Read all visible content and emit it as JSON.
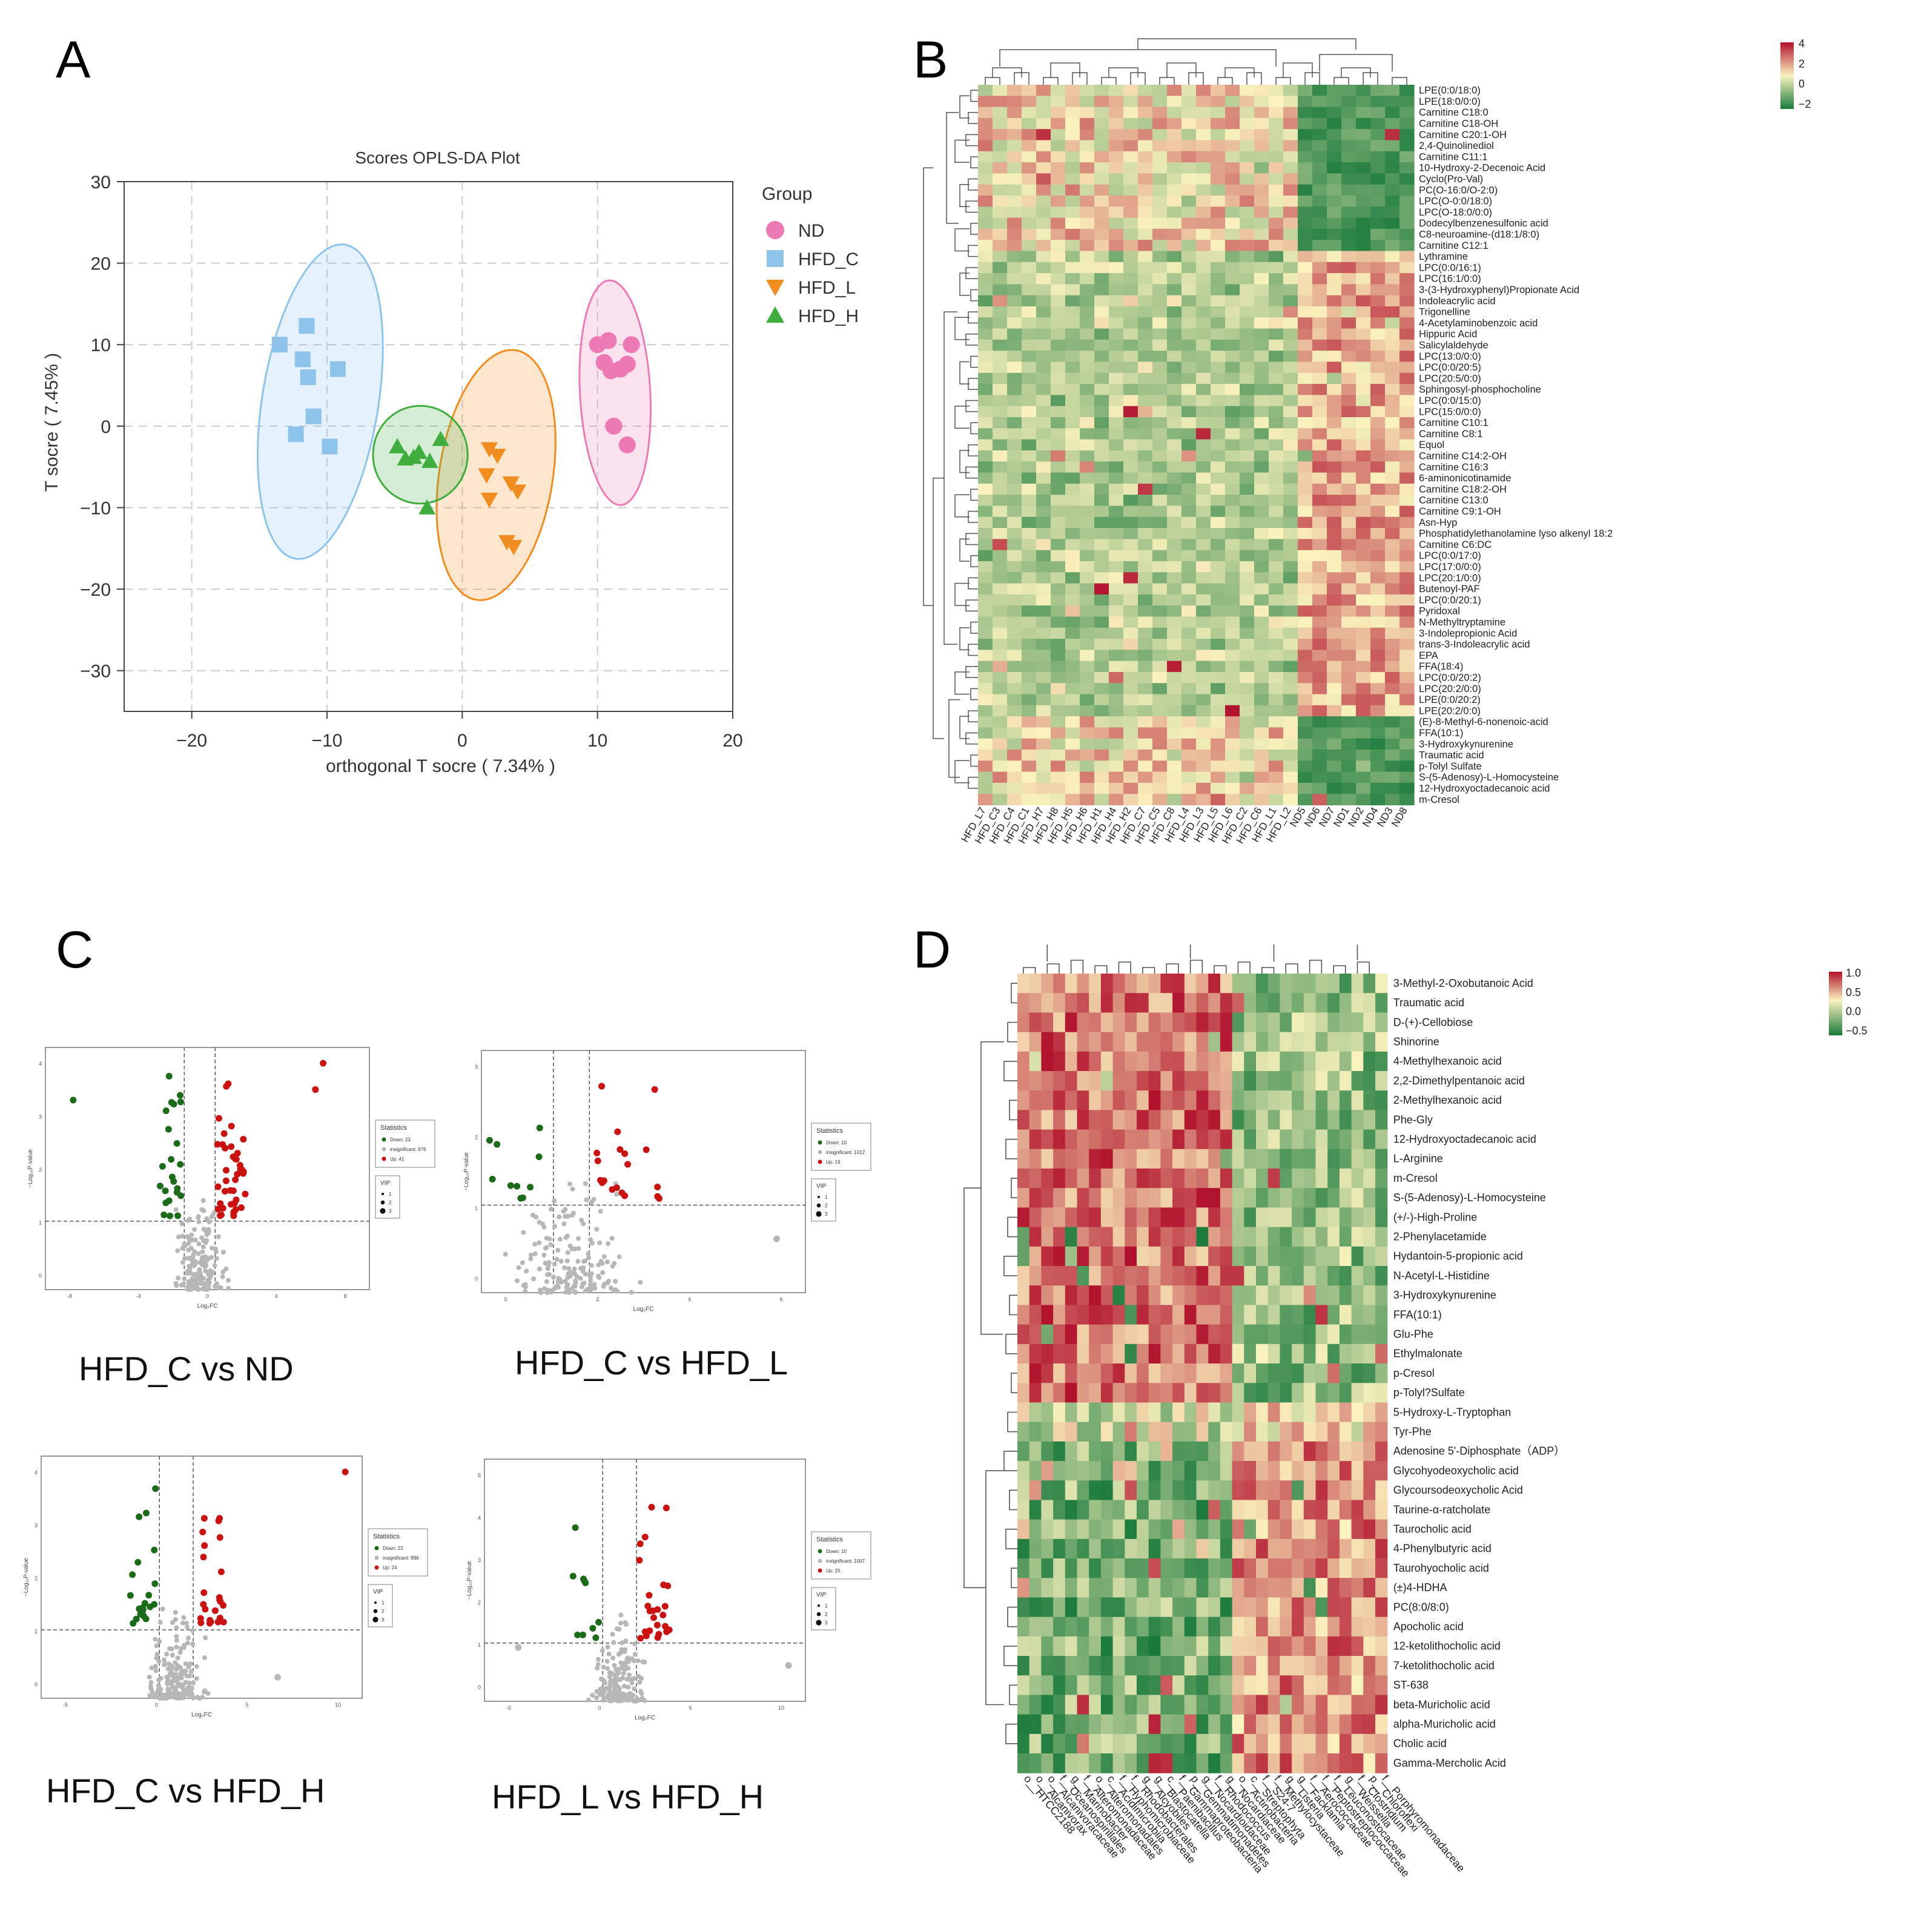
{
  "panels": {
    "a": "A",
    "b": "B",
    "c": "C",
    "d": "D"
  },
  "colors": {
    "ND": "#ee7ab5",
    "HFD_C": "#8ec3ec",
    "HFD_L": "#f08d1e",
    "HFD_H": "#3fae3f",
    "heat_low": "#1a7a3c",
    "heat_mid": "#fbf2bd",
    "heat_high": "#b1112c",
    "vol_down": "#1b6b1b",
    "vol_up": "#cc1111",
    "vol_ns": "#b7b7b7"
  },
  "chart_data": [
    {
      "type": "scatter",
      "title": "Scores OPLS-DA Plot",
      "xlabel": "orthogonal T socre ( 7.34% )",
      "ylabel": "T socre ( 7.45% )",
      "xlim": [
        -25,
        20
      ],
      "ylim": [
        -35,
        30
      ],
      "xticks": [
        -20,
        -10,
        0,
        10,
        20
      ],
      "yticks": [
        -30,
        -20,
        -10,
        0,
        10,
        20,
        30
      ],
      "xtick_labels": [
        "−20",
        "−10",
        "0",
        "10",
        "20"
      ],
      "ytick_labels": [
        "−30",
        "−20",
        "−10",
        "0",
        "10",
        "20",
        "30"
      ],
      "legend_title": "Group",
      "series": [
        {
          "name": "ND",
          "marker": "circle",
          "points": [
            [
              10,
              10
            ],
            [
              10.8,
              10.5
            ],
            [
              12.5,
              10
            ],
            [
              10.5,
              7.8
            ],
            [
              11.7,
              7
            ],
            [
              12.2,
              7.6
            ],
            [
              11,
              6.8
            ],
            [
              11.2,
              0
            ],
            [
              12.2,
              -2.3
            ]
          ],
          "ellipse": {
            "cx": 11.3,
            "cy": 4.1,
            "rx": 2.6,
            "ry": 13.8,
            "angle": -3
          }
        },
        {
          "name": "HFD_C",
          "marker": "square",
          "points": [
            [
              -13.5,
              10
            ],
            [
              -11.5,
              12.3
            ],
            [
              -11.8,
              8.2
            ],
            [
              -11.4,
              6
            ],
            [
              -9.2,
              7
            ],
            [
              -11,
              1.2
            ],
            [
              -12.3,
              -1
            ],
            [
              -9.8,
              -2.5
            ]
          ],
          "ellipse": {
            "cx": -10.5,
            "cy": 3,
            "rx": 4.3,
            "ry": 19.5,
            "angle": 9
          }
        },
        {
          "name": "HFD_L",
          "marker": "triangle-down",
          "points": [
            [
              2,
              -2.8
            ],
            [
              2.6,
              -3.6
            ],
            [
              1.8,
              -6
            ],
            [
              3.6,
              -7
            ],
            [
              2,
              -9
            ],
            [
              4.1,
              -8
            ],
            [
              3.3,
              -14.2
            ],
            [
              3.8,
              -14.8
            ]
          ],
          "ellipse": {
            "cx": 2.5,
            "cy": -6,
            "rx": 4.2,
            "ry": 15.5,
            "angle": 9
          }
        },
        {
          "name": "HFD_H",
          "marker": "triangle",
          "points": [
            [
              -4.8,
              -2.5
            ],
            [
              -3.6,
              -3.8
            ],
            [
              -4.2,
              -4
            ],
            [
              -3.2,
              -3.2
            ],
            [
              -2.4,
              -4.3
            ],
            [
              -1.6,
              -1.6
            ],
            [
              -2.6,
              -10
            ]
          ],
          "ellipse": {
            "cx": -3.1,
            "cy": -3.5,
            "rx": 3.5,
            "ry": 6,
            "angle": 0
          }
        }
      ]
    },
    {
      "type": "heatmap",
      "colorbar_ticks": [
        "4",
        "2",
        "0",
        "−2"
      ],
      "columns": [
        "HFD_L7",
        "HFD_C3",
        "HFD_C4",
        "HFD_C1",
        "HFD_H7",
        "HFD_H8",
        "HFD_H5",
        "HFD_H6",
        "HFD_H1",
        "HFD_H4",
        "HFD_H2",
        "HFD_C7",
        "HFD_C5",
        "HFD_C8",
        "HFD_L4",
        "HFD_L3",
        "HFD_L5",
        "HFD_L6",
        "HFD_C2",
        "HFD_C6",
        "HFD_L1",
        "HFD_L2",
        "ND5",
        "ND6",
        "ND7",
        "ND1",
        "ND2",
        "ND4",
        "ND3",
        "ND8"
      ],
      "rows": [
        "LPE(0:0/18:0)",
        "LPE(18:0/0:0)",
        "Carnitine C18:0",
        "Carnitine C18-OH",
        "Carnitine C20:1-OH",
        "2,4-Quinolinediol",
        "Carnitine C11:1",
        "10-Hydroxy-2-Decenoic Acid",
        "Cyclo(Pro-Val)",
        "PC(O-16:0/O-2:0)",
        "LPC(O-0:0/18:0)",
        "LPC(O-18:0/0:0)",
        "Dodecylbenzenesulfonic acid",
        "C8-neuroamine-(d18:1/8:0)",
        "Carnitine C12:1",
        "Lythramine",
        "LPC(0:0/16:1)",
        "LPC(16:1/0:0)",
        "3-(3-Hydroxyphenyl)Propionate Acid",
        "Indoleacrylic acid",
        "Trigonelline",
        "4-Acetylaminobenzoic acid",
        "Hippuric Acid",
        "Salicylaldehyde",
        "LPC(13:0/0:0)",
        "LPC(0:0/20:5)",
        "LPC(20:5/0:0)",
        "Sphingosyl-phosphocholine",
        "LPC(0:0/15:0)",
        "LPC(15:0/0:0)",
        "Carnitine C10:1",
        "Carnitine C8:1",
        "Equol",
        "Carnitine C14:2-OH",
        "Carnitine C16:3",
        "6-aminonicotinamide",
        "Carnitine C18:2-OH",
        "Carnitine C13:0",
        "Carnitine C9:1-OH",
        "Asn-Hyp",
        "Phosphatidylethanolamine lyso alkenyl 18:2",
        "Carnitine C6:DC",
        "LPC(0:0/17:0)",
        "LPC(17:0/0:0)",
        "LPC(20:1/0:0)",
        "Butenoyl-PAF",
        "LPC(0:0/20:1)",
        "Pyridoxal",
        "N-Methyltryptamine",
        "3-Indolepropionic Acid",
        "trans-3-Indoleacrylic acid",
        "EPA",
        "FFA(18:4)",
        "LPC(0:0/20:2)",
        "LPC(20:2/0:0)",
        "LPE(0:0/20:2)",
        "LPE(20:2/0:0)",
        "(E)-8-Methyl-6-nonenoic-acid",
        "FFA(10:1)",
        "3-Hydroxykynurenine",
        "Traumatic acid",
        "p-Tolyl Sulfate",
        "S-(5-Adenosy)-L-Homocysteine",
        "12-Hydroxyoctadecanoic acid",
        "m-Cresol"
      ]
    },
    {
      "type": "scatter",
      "subtype": "volcano",
      "xlabel": "Log₂FC",
      "ylabel": "−Log₁₀P-value",
      "legend_title": "Statistics",
      "vip_title": "VIP",
      "vip_levels": [
        "1",
        "2",
        "3"
      ],
      "plots": [
        {
          "title": "HFD_C vs ND",
          "legend": [
            "Down: 23",
            "insignificant: 976",
            "Up: 41"
          ],
          "xticks": [
            "-8",
            "-4",
            "0",
            "4",
            "8"
          ],
          "yticks": [
            "0",
            "1",
            "2",
            "3",
            "4"
          ]
        },
        {
          "title": "HFD_C vs HFD_L",
          "legend": [
            "Down: 10",
            "insignificant: 1012",
            "Up: 19"
          ],
          "xticks": [
            "0",
            "2",
            "4",
            "6"
          ],
          "yticks": [
            "0",
            "1",
            "2",
            "3"
          ]
        },
        {
          "title": "HFD_C vs HFD_H",
          "legend": [
            "Down: 22",
            "insignificant: 996",
            "Up: 24"
          ],
          "xticks": [
            "-5",
            "0",
            "5",
            "10"
          ],
          "yticks": [
            "0",
            "1",
            "2",
            "3",
            "4"
          ]
        },
        {
          "title": "HFD_L vs HFD_H",
          "legend": [
            "Down: 10",
            "insignificant: 1007",
            "Up: 25"
          ],
          "xticks": [
            "-5",
            "0",
            "5",
            "10"
          ],
          "yticks": [
            "0",
            "1",
            "2",
            "3",
            "4",
            "5"
          ]
        }
      ]
    },
    {
      "type": "heatmap",
      "subtype": "correlation",
      "colorbar_ticks": [
        "1.0",
        "0.5",
        "0.0",
        "−0.5"
      ],
      "columns": [
        "o__HTCC2188",
        "o__Alcanivorax",
        "o__Alcanivoracaceae",
        "f__Oceanospirillales",
        "g__Marinobacter",
        "f__Alteromonadaceae",
        "o__Alteromonadales",
        "c__Acidimicrobiia",
        "f__Hyphomicrobiaceae",
        "f__Rhodobacterales",
        "g__Alcyobiles",
        "g__Blastocatella",
        "c__Paenibacillus",
        "f__Gammaproteobacteria",
        "p__Gemmatimonadetes",
        "g__Nocardioidaceae",
        "f__Rhodococcus",
        "g__Nocardiaceae",
        "o__Actinobacteria",
        "c__Streptophyta",
        "f__S24-7",
        "f__Methylocystaceae",
        "g__Listeria",
        "g__Facklamia",
        "f__Aerococcaceae",
        "f__Peptostreptococcaceae",
        "f__Leuconostocaceae",
        "g__Weissella",
        "f__Clostridium",
        "p__Chloroflexi",
        "f__Porphyromonadaceae"
      ],
      "rows": [
        "3-Methyl-2-Oxobutanoic Acid",
        "Traumatic acid",
        "D-(+)-Cellobiose",
        "Shinorine",
        "4-Methylhexanoic acid",
        "2,2-Dimethylpentanoic acid",
        "2-Methylhexanoic acid",
        "Phe-Gly",
        "12-Hydroxyoctadecanoic acid",
        "L-Arginine",
        "m-Cresol",
        "S-(5-Adenosy)-L-Homocysteine",
        "(+/-)-High-Proline",
        "2-Phenylacetamide",
        "Hydantoin-5-propionic acid",
        "N-Acetyl-L-Histidine",
        "3-Hydroxykynurenine",
        "FFA(10:1)",
        "Glu-Phe",
        "Ethylmalonate",
        "p-Cresol",
        "p-Tolyl?Sulfate",
        "5-Hydroxy-L-Tryptophan",
        "Tyr-Phe",
        "Adenosine 5'-Diphosphate（ADP）",
        "Glycohyodeoxycholic acid",
        "Glycoursodeoxycholic Acid",
        "Taurine-α-ratcholate",
        "Taurocholic acid",
        "4-Phenylbutyric acid",
        "Taurohyocholic acid",
        "(±)4-HDHA",
        "PC(8:0/8:0)",
        "Apocholic acid",
        "12-ketolithocholic acid",
        "7-ketolithocholic acid",
        "ST-638",
        "beta-Muricholic acid",
        "alpha-Muricholic acid",
        "Cholic acid",
        "Gamma-Mercholic Acid"
      ]
    }
  ]
}
